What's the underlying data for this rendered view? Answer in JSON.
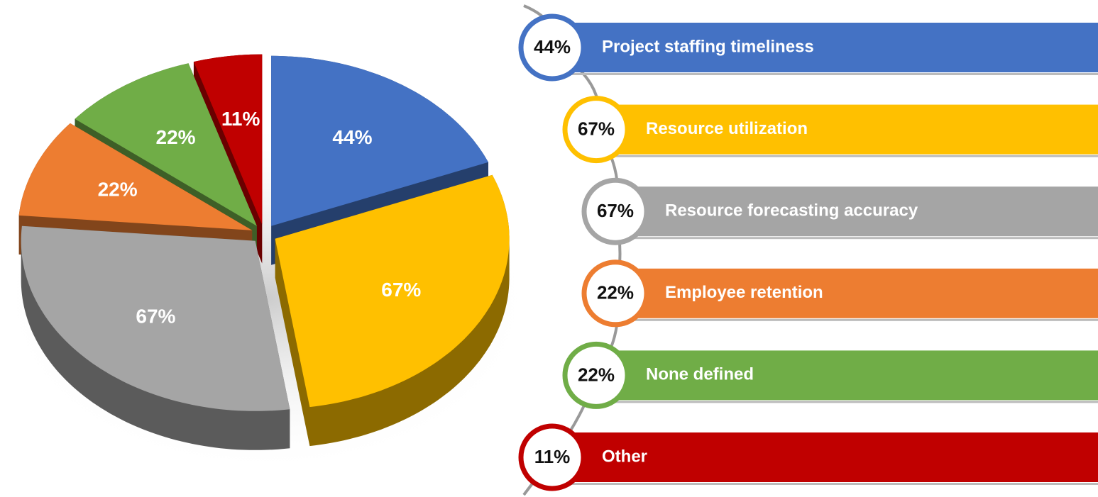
{
  "chart_data": {
    "type": "pie",
    "categories": [
      "Project staffing timeliness",
      "Resource utilization",
      "Resource forecasting accuracy",
      "Employee retention",
      "None defined",
      "Other"
    ],
    "values": [
      44,
      67,
      67,
      22,
      22,
      11
    ],
    "value_labels": [
      "44%",
      "67%",
      "67%",
      "22%",
      "22%",
      "11%"
    ],
    "colors": [
      "#4472c4",
      "#ffc000",
      "#a5a5a5",
      "#ed7d31",
      "#70ad47",
      "#c00000"
    ]
  }
}
